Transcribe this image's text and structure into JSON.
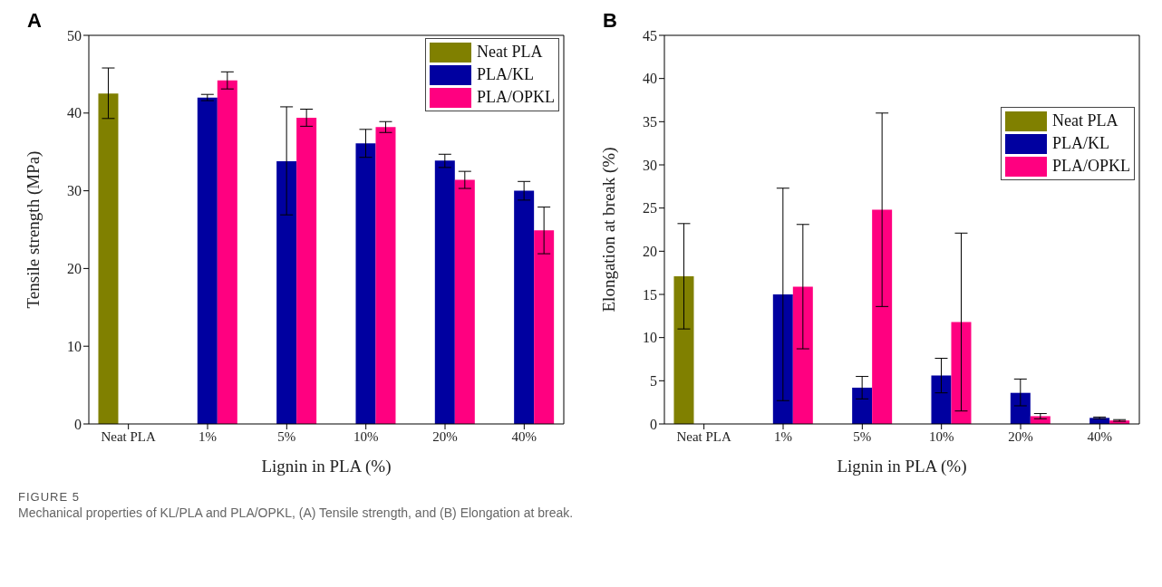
{
  "chart_data": [
    {
      "type": "bar",
      "title": "A",
      "xlabel": "Lignin in PLA (%)",
      "ylabel": "Tensile strength (MPa)",
      "categories": [
        "Neat PLA",
        "1%",
        "5%",
        "10%",
        "20%",
        "40%"
      ],
      "ylim": [
        0,
        50
      ],
      "yticks": [
        0,
        10,
        20,
        30,
        40,
        50
      ],
      "legend": "top right",
      "series": [
        {
          "name": "Neat PLA",
          "color": "#808000",
          "values": [
            42.5,
            null,
            null,
            null,
            null,
            null
          ],
          "errors": [
            [
              39.3,
              45.8
            ],
            null,
            null,
            null,
            null,
            null
          ]
        },
        {
          "name": "PLA/KL",
          "color": "#0000a0",
          "values": [
            null,
            42.0,
            33.8,
            36.1,
            33.9,
            30.0
          ],
          "errors": [
            null,
            [
              41.6,
              42.4
            ],
            [
              26.9,
              40.8
            ],
            [
              34.3,
              37.9
            ],
            [
              33.0,
              34.7
            ],
            [
              28.8,
              31.2
            ]
          ]
        },
        {
          "name": "PLA/OPKL",
          "color": "#ff0080",
          "values": [
            null,
            44.2,
            39.4,
            38.2,
            31.4,
            24.9
          ],
          "errors": [
            null,
            [
              43.1,
              45.3
            ],
            [
              38.3,
              40.5
            ],
            [
              37.5,
              38.9
            ],
            [
              30.3,
              32.5
            ],
            [
              21.9,
              27.9
            ]
          ]
        }
      ],
      "annotations": [
        "FIGURE 5",
        "Mechanical properties of KL/PLA and PLA/OPKL, (A) Tensile strength, and (B) Elongation at break."
      ]
    },
    {
      "type": "bar",
      "title": "B",
      "xlabel": "Lignin in PLA (%)",
      "ylabel": "Elongation at break (%)",
      "categories": [
        "Neat PLA",
        "1%",
        "5%",
        "10%",
        "20%",
        "40%"
      ],
      "ylim": [
        0,
        45
      ],
      "yticks": [
        0,
        5,
        10,
        15,
        20,
        25,
        30,
        35,
        40,
        45
      ],
      "legend": "top right",
      "series": [
        {
          "name": "Neat PLA",
          "color": "#808000",
          "values": [
            17.1,
            null,
            null,
            null,
            null,
            null
          ],
          "errors": [
            [
              11.0,
              23.2
            ],
            null,
            null,
            null,
            null,
            null
          ]
        },
        {
          "name": "PLA/KL",
          "color": "#0000a0",
          "values": [
            null,
            15.0,
            4.2,
            5.6,
            3.6,
            0.7
          ],
          "errors": [
            null,
            [
              2.7,
              27.3
            ],
            [
              2.9,
              5.5
            ],
            [
              3.6,
              7.6
            ],
            [
              2.1,
              5.2
            ],
            [
              0.6,
              0.8
            ]
          ]
        },
        {
          "name": "PLA/OPKL",
          "color": "#ff0080",
          "values": [
            null,
            15.9,
            24.8,
            11.8,
            0.9,
            0.4
          ],
          "errors": [
            null,
            [
              8.7,
              23.1
            ],
            [
              13.6,
              36.0
            ],
            [
              1.5,
              22.1
            ],
            [
              0.6,
              1.2
            ],
            [
              0.3,
              0.5
            ]
          ]
        }
      ]
    }
  ]
}
